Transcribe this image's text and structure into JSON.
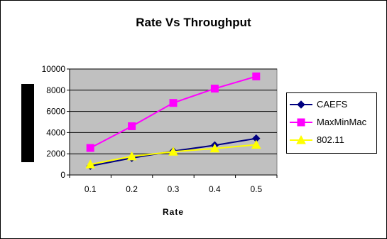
{
  "chart_data": {
    "type": "line",
    "title": "Rate Vs Throughput",
    "xlabel": "Rate",
    "ylabel": "",
    "categories": [
      "0.1",
      "0.2",
      "0.3",
      "0.4",
      "0.5"
    ],
    "ylim": [
      0,
      10000
    ],
    "yticks": [
      "0",
      "2000",
      "4000",
      "6000",
      "8000",
      "10000"
    ],
    "grid": true,
    "legend_position": "right",
    "plot_background": "#c0c0c0",
    "series": [
      {
        "name": "CAEFS",
        "color": "#000080",
        "marker": "diamond",
        "values": [
          850,
          1600,
          2250,
          2800,
          3450
        ]
      },
      {
        "name": "MaxMinMac",
        "color": "#ff00ff",
        "marker": "square",
        "values": [
          2550,
          4600,
          6800,
          8150,
          9300
        ]
      },
      {
        "name": "802.11",
        "color": "#ffff00",
        "marker": "triangle",
        "values": [
          1000,
          1750,
          2200,
          2500,
          2850
        ]
      }
    ]
  }
}
